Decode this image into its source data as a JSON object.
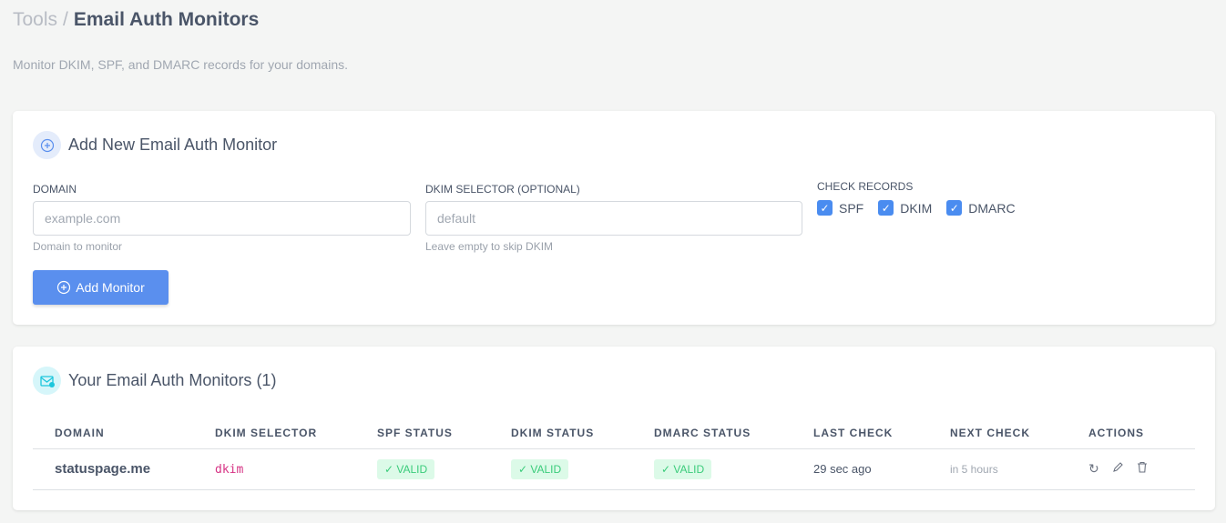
{
  "breadcrumb": {
    "parent": "Tools",
    "separator": "/",
    "current": "Email Auth Monitors"
  },
  "subtitle": "Monitor DKIM, SPF, and DMARC records for your domains.",
  "add_card": {
    "title": "Add New Email Auth Monitor",
    "icon": "plus-circle-icon",
    "domain": {
      "label": "DOMAIN",
      "placeholder": "example.com",
      "value": "",
      "hint": "Domain to monitor"
    },
    "selector": {
      "label": "DKIM SELECTOR (OPTIONAL)",
      "placeholder": "default",
      "value": "",
      "hint": "Leave empty to skip DKIM"
    },
    "check_label": "CHECK RECORDS",
    "checks": [
      {
        "label": "SPF",
        "checked": true
      },
      {
        "label": "DKIM",
        "checked": true
      },
      {
        "label": "DMARC",
        "checked": true
      }
    ],
    "button": "Add Monitor"
  },
  "list_card": {
    "title": "Your Email Auth Monitors (1)",
    "icon": "mail-check-icon",
    "columns": [
      "DOMAIN",
      "DKIM SELECTOR",
      "SPF STATUS",
      "DKIM STATUS",
      "DMARC STATUS",
      "LAST CHECK",
      "NEXT CHECK",
      "ACTIONS"
    ],
    "rows": [
      {
        "domain": "statuspage.me",
        "selector": "dkim",
        "spf": "✓ VALID",
        "dkim": "✓ VALID",
        "dmarc": "✓ VALID",
        "last": "29 sec ago",
        "next": "in 5 hours"
      }
    ]
  },
  "colors": {
    "accent": "#5a8fee",
    "valid_bg": "#dcfae8",
    "valid_text": "#3bcc7b"
  }
}
